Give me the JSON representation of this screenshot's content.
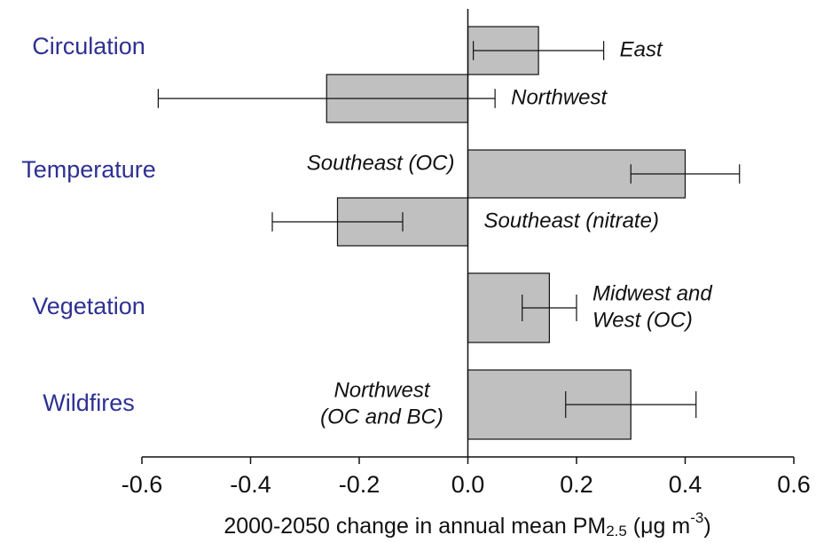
{
  "chart_data": {
    "type": "bar",
    "orientation": "horizontal",
    "xlabel_parts": [
      "2000-2050 change in annual mean PM",
      "2.5",
      " (μg m",
      "-3",
      ")"
    ],
    "xlim": [
      -0.6,
      0.6
    ],
    "xticks": [
      -0.6,
      -0.4,
      -0.2,
      {
        "value": 0,
        "label": "0.0"
      },
      0.2,
      0.4,
      0.6
    ],
    "bar_color": "#c0c0c0",
    "group_color": "#2e3192",
    "groups": [
      {
        "name": "Circulation",
        "rows": [
          {
            "label": [
              "East"
            ],
            "value": 0.13,
            "low": 0.01,
            "high": 0.25,
            "side": "right"
          },
          {
            "label": [
              "Northwest"
            ],
            "value": -0.26,
            "low": -0.57,
            "high": 0.05,
            "side": "right"
          }
        ]
      },
      {
        "name": "Temperature",
        "rows": [
          {
            "label": [
              "Southeast (OC)"
            ],
            "value": 0.4,
            "low": 0.3,
            "high": 0.5,
            "side": "left"
          },
          {
            "label": [
              "Southeast (nitrate)"
            ],
            "value": -0.24,
            "low": -0.36,
            "high": -0.12,
            "side": "right"
          }
        ]
      },
      {
        "name": "Vegetation",
        "rows": [
          {
            "label": [
              "Midwest and",
              "West (OC)"
            ],
            "value": 0.15,
            "low": 0.1,
            "high": 0.2,
            "side": "right"
          }
        ]
      },
      {
        "name": "Wildfires",
        "rows": [
          {
            "label": [
              "Northwest",
              "(OC and BC)"
            ],
            "value": 0.3,
            "low": 0.18,
            "high": 0.42,
            "side": "left"
          }
        ]
      }
    ]
  }
}
